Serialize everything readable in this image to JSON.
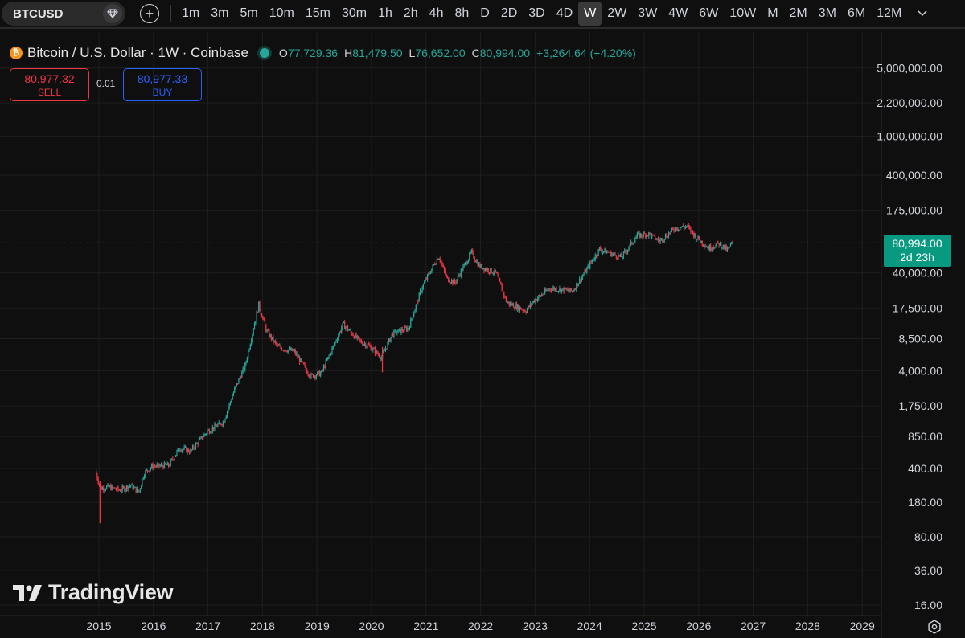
{
  "toolbar": {
    "symbol": "BTCUSD",
    "timeframes": [
      "1m",
      "3m",
      "5m",
      "10m",
      "15m",
      "30m",
      "1h",
      "2h",
      "4h",
      "8h",
      "D",
      "2D",
      "3D",
      "4D",
      "W",
      "2W",
      "3W",
      "4W",
      "6W",
      "10W",
      "M",
      "2M",
      "3M",
      "6M",
      "12M"
    ],
    "active_timeframe": "W",
    "icons": [
      "diamond-icon",
      "plus-icon",
      "chevron-down-icon"
    ]
  },
  "legend": {
    "title": "Bitcoin / U.S. Dollar · 1W · Coinbase",
    "coin_glyph": "₿",
    "o_key": "O",
    "o_val": "77,729.36",
    "h_key": "H",
    "h_val": "81,479.50",
    "l_key": "L",
    "l_val": "76,652.00",
    "c_key": "C",
    "c_val": "80,994.00",
    "change": "+3,264.64 (+4.20%)"
  },
  "trade": {
    "sell_price": "80,977.32",
    "sell_label": "SELL",
    "spread": "0.01",
    "buy_price": "80,977.33",
    "buy_label": "BUY"
  },
  "price_tag": {
    "price": "80,994.00",
    "countdown": "2d 23h"
  },
  "watermark": "TradingView",
  "colors": {
    "up": "#26a69a",
    "down": "#f23645",
    "buy": "#2962ff",
    "background": "#0f0f0f",
    "price_tag": "#089981"
  },
  "chart_data": {
    "type": "candlestick",
    "y_scale": "log",
    "y_ticks": [
      "5,000,000.00",
      "2,200,000.00",
      "1,000,000.00",
      "400,000.00",
      "175,000.00",
      "40,000.00",
      "17,500.00",
      "8,500.00",
      "4,000.00",
      "1,750.00",
      "850.00",
      "400.00",
      "180.00",
      "80.00",
      "36.00",
      "16.00"
    ],
    "x_ticks": [
      "2015",
      "2016",
      "2017",
      "2018",
      "2019",
      "2020",
      "2021",
      "2022",
      "2023",
      "2024",
      "2025",
      "2026",
      "2027",
      "2028",
      "2029"
    ],
    "last_price": 80994,
    "grid": true,
    "path": [
      {
        "x": 2014.95,
        "y": 380
      },
      {
        "x": 2015.05,
        "y": 250
      },
      {
        "x": 2015.2,
        "y": 260
      },
      {
        "x": 2015.4,
        "y": 240
      },
      {
        "x": 2015.6,
        "y": 270
      },
      {
        "x": 2015.75,
        "y": 230
      },
      {
        "x": 2015.85,
        "y": 360
      },
      {
        "x": 2016.0,
        "y": 420
      },
      {
        "x": 2016.3,
        "y": 430
      },
      {
        "x": 2016.5,
        "y": 650
      },
      {
        "x": 2016.7,
        "y": 600
      },
      {
        "x": 2017.0,
        "y": 950
      },
      {
        "x": 2017.3,
        "y": 1200
      },
      {
        "x": 2017.5,
        "y": 2500
      },
      {
        "x": 2017.7,
        "y": 4500
      },
      {
        "x": 2017.95,
        "y": 19000
      },
      {
        "x": 2018.1,
        "y": 10000
      },
      {
        "x": 2018.3,
        "y": 7000
      },
      {
        "x": 2018.6,
        "y": 6300
      },
      {
        "x": 2018.9,
        "y": 3500
      },
      {
        "x": 2019.1,
        "y": 3800
      },
      {
        "x": 2019.5,
        "y": 12000
      },
      {
        "x": 2019.8,
        "y": 8000
      },
      {
        "x": 2019.97,
        "y": 7200
      },
      {
        "x": 2020.2,
        "y": 5500
      },
      {
        "x": 2020.4,
        "y": 9500
      },
      {
        "x": 2020.7,
        "y": 11000
      },
      {
        "x": 2020.95,
        "y": 29000
      },
      {
        "x": 2021.25,
        "y": 60000
      },
      {
        "x": 2021.4,
        "y": 35000
      },
      {
        "x": 2021.55,
        "y": 32000
      },
      {
        "x": 2021.85,
        "y": 65000
      },
      {
        "x": 2022.0,
        "y": 47000
      },
      {
        "x": 2022.3,
        "y": 40000
      },
      {
        "x": 2022.5,
        "y": 20000
      },
      {
        "x": 2022.85,
        "y": 16500
      },
      {
        "x": 2023.0,
        "y": 21000
      },
      {
        "x": 2023.3,
        "y": 28000
      },
      {
        "x": 2023.7,
        "y": 26000
      },
      {
        "x": 2023.95,
        "y": 42000
      },
      {
        "x": 2024.2,
        "y": 70000
      },
      {
        "x": 2024.6,
        "y": 58000
      },
      {
        "x": 2024.9,
        "y": 97000
      },
      {
        "x": 2025.1,
        "y": 100000
      },
      {
        "x": 2025.3,
        "y": 85000
      },
      {
        "x": 2025.6,
        "y": 115000
      },
      {
        "x": 2025.8,
        "y": 120000
      },
      {
        "x": 2026.0,
        "y": 90000
      },
      {
        "x": 2026.2,
        "y": 72000
      },
      {
        "x": 2026.4,
        "y": 80000
      },
      {
        "x": 2026.55,
        "y": 68000
      },
      {
        "x": 2026.63,
        "y": 80994
      }
    ]
  }
}
